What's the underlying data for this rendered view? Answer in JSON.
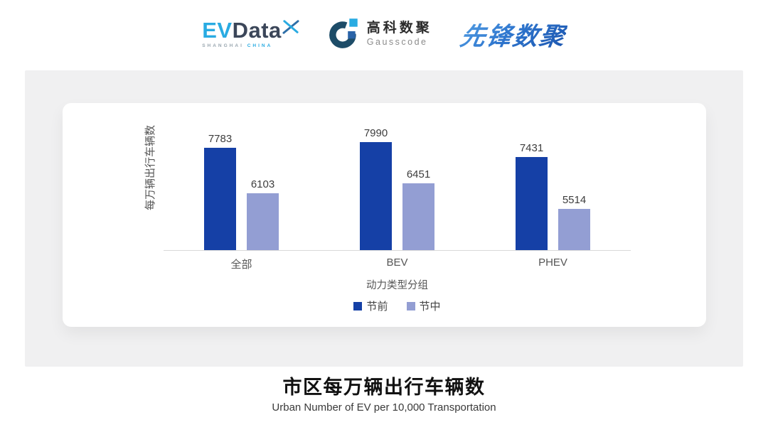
{
  "header": {
    "evdata": {
      "ev": "EV",
      "data": "Data",
      "sub_left": "SHANGHAI",
      "sub_right": "CHINA",
      "ev_color": "#29abe2",
      "data_color": "#3b4659"
    },
    "gausscode": {
      "cn": "高科数聚",
      "en": "Gausscode",
      "ring_color": "#1d4c68",
      "square_light_color": "#29abe2",
      "square_mid_color": "#2a63a8"
    },
    "xianfeng": {
      "text": "先锋数聚",
      "color_from": "#54a0e4",
      "color_to": "#1c55ae"
    }
  },
  "chart_data": {
    "type": "bar",
    "categories": [
      "全部",
      "BEV",
      "PHEV"
    ],
    "series": [
      {
        "name": "节前",
        "color": "#1540a6",
        "values": [
          7783,
          7990,
          7431
        ]
      },
      {
        "name": "节中",
        "color": "#939ed3",
        "values": [
          6103,
          6451,
          5514
        ]
      }
    ],
    "title": "",
    "xlabel": "动力类型分组",
    "ylabel": "每万辆出行车辆数",
    "ylim": [
      4000,
      8400
    ],
    "grid": false,
    "legend_position": "bottom",
    "value_labels": true,
    "axis_line_color": "#d9d9d9"
  },
  "footer": {
    "title": "市区每万辆出行车辆数",
    "subtitle": "Urban Number of EV per 10,000 Transportation"
  }
}
